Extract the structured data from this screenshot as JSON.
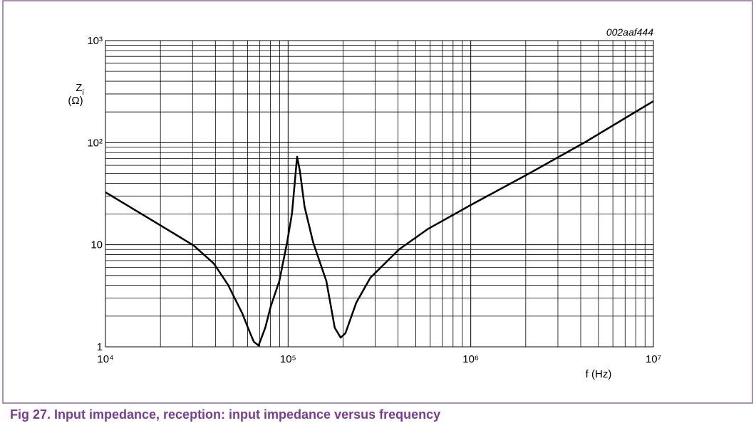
{
  "chart_data": {
    "type": "line",
    "annotation": "002aaf444",
    "ylabel": {
      "symbol": "Z",
      "subscript": "i",
      "unit": "(Ω)"
    },
    "xlabel": "f (Hz)",
    "caption": "Fig 27.   Input impedance, reception: input impedance versus frequency",
    "xlog": true,
    "ylog": true,
    "grid": true,
    "minor_grid": true,
    "xlim": [
      10000,
      10000000
    ],
    "ylim": [
      1,
      1000
    ],
    "xticks": [
      {
        "value": 10000,
        "label": "10⁴"
      },
      {
        "value": 100000,
        "label": "10⁵"
      },
      {
        "value": 1000000,
        "label": "10⁶"
      },
      {
        "value": 10000000,
        "label": "10⁷"
      }
    ],
    "yticks": [
      1,
      10,
      {
        "value": 100,
        "label": "10²"
      },
      {
        "value": 1000,
        "label": "10³"
      }
    ],
    "series": [
      {
        "color": "#000000",
        "x": [
          10000,
          20000,
          30500,
          39200,
          46900,
          56100,
          61400,
          64900,
          68900,
          75000,
          80400,
          89500,
          98800,
          105000,
          112000,
          116000,
          123000,
          137000,
          162000,
          180000,
          194000,
          206000,
          236000,
          282000,
          405000,
          580000,
          1000000,
          2040000,
          4200000,
          10000000
        ],
        "values": [
          32.7,
          15.5,
          9.8,
          6.55,
          4.05,
          2.13,
          1.42,
          1.12,
          1.03,
          1.54,
          2.5,
          4.4,
          10.6,
          20.2,
          72.9,
          52.9,
          23.7,
          10.6,
          4.4,
          1.54,
          1.23,
          1.36,
          2.7,
          4.75,
          9.0,
          14.2,
          24.5,
          48.8,
          100.5,
          255
        ]
      }
    ]
  }
}
